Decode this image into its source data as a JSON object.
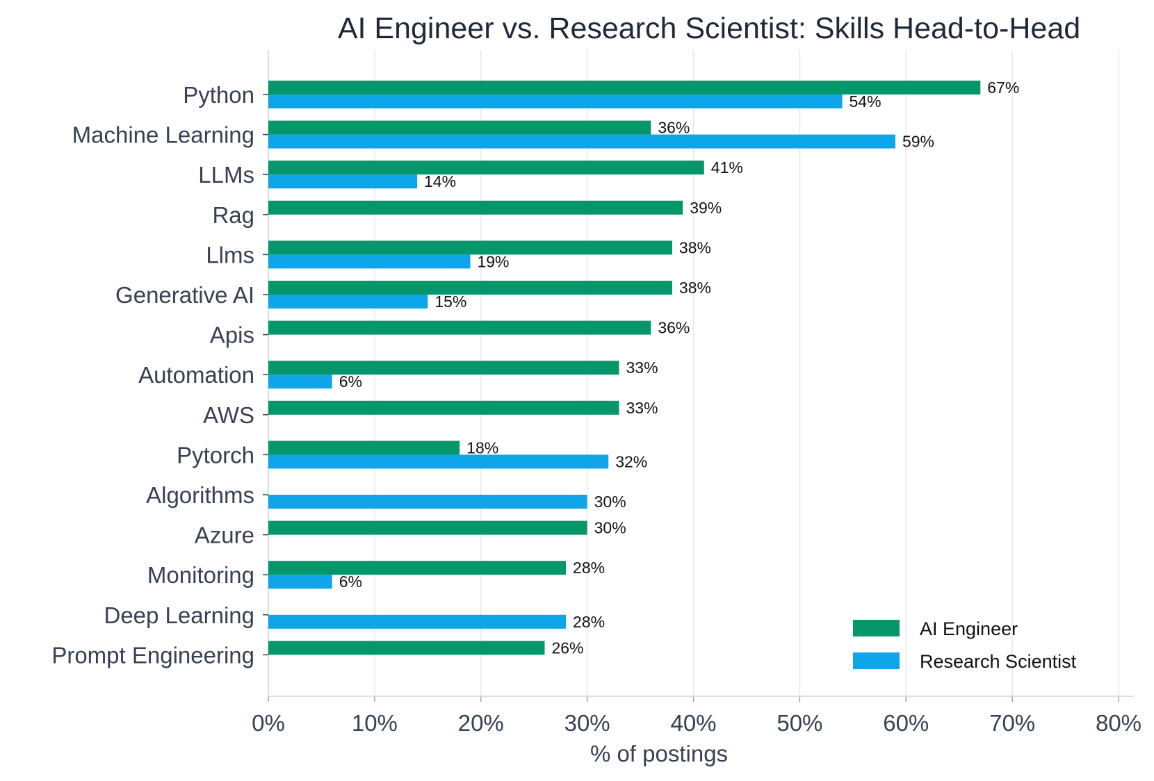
{
  "chart_data": {
    "type": "bar",
    "orientation": "horizontal",
    "title": "AI Engineer vs. Research Scientist: Skills Head-to-Head",
    "xlabel": "% of postings",
    "ylabel": "",
    "xlim": [
      0,
      80
    ],
    "xticks": [
      0,
      10,
      20,
      30,
      40,
      50,
      60,
      70,
      80
    ],
    "xtick_labels": [
      "0%",
      "10%",
      "20%",
      "30%",
      "40%",
      "50%",
      "60%",
      "70%",
      "80%"
    ],
    "grid": "vertical",
    "legend_position": "bottom-right",
    "categories": [
      "Python",
      "Machine Learning",
      "LLMs",
      "Rag",
      "Llms",
      "Generative AI",
      "Apis",
      "Automation",
      "AWS",
      "Pytorch",
      "Algorithms",
      "Azure",
      "Monitoring",
      "Deep Learning",
      "Prompt Engineering"
    ],
    "series": [
      {
        "name": "AI Engineer",
        "color": "#059669",
        "values": [
          67,
          36,
          41,
          39,
          38,
          38,
          36,
          33,
          33,
          18,
          null,
          30,
          28,
          null,
          26
        ],
        "labels": [
          "67%",
          "36%",
          "41%",
          "39%",
          "38%",
          "38%",
          "36%",
          "33%",
          "33%",
          "18%",
          null,
          "30%",
          "28%",
          null,
          "26%"
        ]
      },
      {
        "name": "Research Scientist",
        "color": "#0ea5e9",
        "values": [
          54,
          59,
          14,
          null,
          19,
          15,
          null,
          6,
          null,
          32,
          30,
          null,
          6,
          28,
          null
        ],
        "labels": [
          "54%",
          "59%",
          "14%",
          null,
          "19%",
          "15%",
          null,
          "6%",
          null,
          "32%",
          "30%",
          null,
          "6%",
          "28%",
          null
        ]
      }
    ]
  }
}
